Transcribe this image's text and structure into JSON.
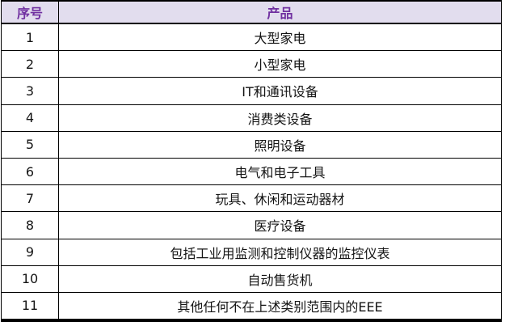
{
  "table": {
    "columns": [
      {
        "label": "序号"
      },
      {
        "label": "产品"
      }
    ],
    "rows": [
      {
        "no": "1",
        "product": "大型家电"
      },
      {
        "no": "2",
        "product": "小型家电"
      },
      {
        "no": "3",
        "product": "IT和通讯设备"
      },
      {
        "no": "4",
        "product": "消费类设备"
      },
      {
        "no": "5",
        "product": "照明设备"
      },
      {
        "no": "6",
        "product": "电气和电子工具"
      },
      {
        "no": "7",
        "product": "玩具、休闲和运动器材"
      },
      {
        "no": "8",
        "product": "医疗设备"
      },
      {
        "no": "9",
        "product": "包括工业用监测和控制仪器的监控仪表"
      },
      {
        "no": "10",
        "product": "自动售货机"
      },
      {
        "no": "11",
        "product": "其他任何不在上述类别范围内的EEE"
      }
    ]
  },
  "colors": {
    "header_bg": "#e2ddee",
    "header_text": "#7030a0",
    "grid_border": "#000000",
    "row_bg": "#ffffff",
    "row_text": "#141414"
  }
}
